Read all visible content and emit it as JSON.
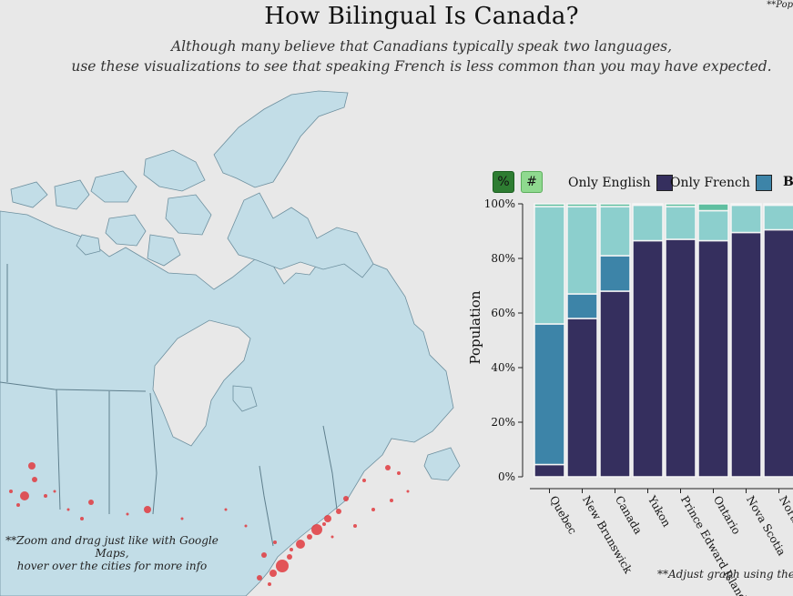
{
  "header": {
    "title": "How Bilingual Is Canada?",
    "subtitle_line1": "Although many believe that Canadians typically speak two languages,",
    "subtitle_line2": "use these visualizations to see that speaking French is less common than you may have expected.",
    "corner_note": "**Pop"
  },
  "map": {
    "note_line1": "**Zoom and drag just like with Google Maps,",
    "note_line2": "hover over the cities for more info",
    "land_color": "#c2dde7",
    "city_color": "#e0393e"
  },
  "controls": {
    "percent_label": "%",
    "count_label": "#"
  },
  "legend": {
    "items": [
      {
        "label": "Only English",
        "color": "#352f5e"
      },
      {
        "label": "Only French",
        "color": "#3d84a8"
      },
      {
        "label": "Bi",
        "color": "#8ccfcd"
      }
    ]
  },
  "graph_note": "**Adjust graph using the leg",
  "chart_data": {
    "type": "bar",
    "stacked": true,
    "ylabel": "Population",
    "ylim": [
      0,
      100
    ],
    "yticks": [
      "0%",
      "20%",
      "40%",
      "60%",
      "80%",
      "100%"
    ],
    "categories": [
      "Quebec",
      "New Brunswick",
      "Canada",
      "Yukon",
      "Prince Edward Island",
      "Ontario",
      "Nova Scotia",
      "Northwest Terr"
    ],
    "series": [
      {
        "name": "Only English",
        "color": "#352f5e",
        "values": [
          4.5,
          58,
          68,
          86.5,
          87,
          86.5,
          89.5,
          90.5
        ]
      },
      {
        "name": "Only French",
        "color": "#3d84a8",
        "values": [
          51.5,
          9,
          13,
          0,
          0,
          0,
          0,
          0
        ]
      },
      {
        "name": "Bi",
        "color": "#8ccfcd",
        "values": [
          43,
          32,
          18,
          13,
          12,
          11,
          10,
          9
        ]
      },
      {
        "name": "",
        "color": "#5fbfa0",
        "values": [
          1,
          1,
          1,
          0.5,
          1,
          2.5,
          0.5,
          0.5
        ]
      }
    ]
  }
}
